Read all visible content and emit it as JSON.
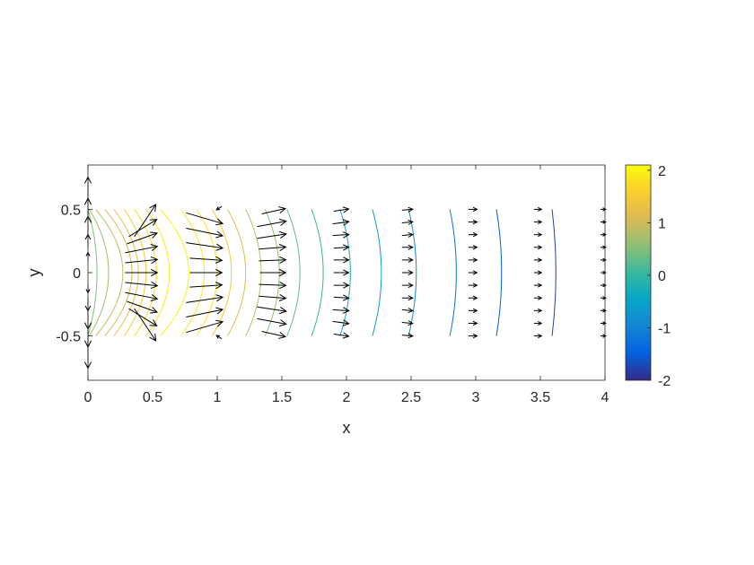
{
  "chart_data": {
    "type": "contour-quiver",
    "xlabel": "x",
    "ylabel": "y",
    "xlim": [
      0,
      4
    ],
    "ylim": [
      -0.85,
      0.85
    ],
    "xticks": [
      "0",
      "0.5",
      "1",
      "1.5",
      "2",
      "2.5",
      "3",
      "3.5",
      "4"
    ],
    "yticks": [
      "-0.5",
      "0",
      "0.5"
    ],
    "grid": false,
    "legend": "none",
    "colorbar": {
      "location": "right",
      "limits": [
        -2,
        2.1
      ],
      "ticks": [
        "-2",
        "-1",
        "0",
        "1",
        "2"
      ],
      "colormap": "parula"
    },
    "contour_levels": [
      -1.8,
      -1.5,
      -1.2,
      -0.9,
      -0.6,
      -0.3,
      0.0,
      0.3,
      0.6,
      0.9,
      1.2,
      1.5,
      1.8,
      2.05,
      1.9,
      1.7,
      1.5,
      1.3,
      1.1,
      0.9,
      0.7,
      0.5
    ],
    "contours": [
      {
        "level": 0.5,
        "x_center": 0.07,
        "x_edge": 0.0
      },
      {
        "level": 0.7,
        "x_center": 0.16,
        "x_edge": 0.01
      },
      {
        "level": 0.9,
        "x_center": 0.27,
        "x_edge": 0.06
      },
      {
        "level": 1.1,
        "x_center": 0.34,
        "x_edge": 0.13
      },
      {
        "level": 1.3,
        "x_center": 0.39,
        "x_edge": 0.2
      },
      {
        "level": 1.5,
        "x_center": 0.45,
        "x_edge": 0.28
      },
      {
        "level": 1.7,
        "x_center": 0.53,
        "x_edge": 0.36
      },
      {
        "level": 1.9,
        "x_center": 0.63,
        "x_edge": 0.45
      },
      {
        "level": 2.05,
        "x_center": 0.78,
        "x_edge": 0.56
      },
      {
        "level": 1.9,
        "x_center": 0.9,
        "x_edge": 0.72
      },
      {
        "level": 1.8,
        "x_center": 1.0,
        "x_edge": 0.84
      },
      {
        "level": 1.5,
        "x_center": 1.11,
        "x_edge": 0.96
      },
      {
        "level": 1.2,
        "x_center": 1.22,
        "x_edge": 1.08
      },
      {
        "level": 0.9,
        "x_center": 1.34,
        "x_edge": 1.22
      },
      {
        "level": 0.6,
        "x_center": 1.48,
        "x_edge": 1.37
      },
      {
        "level": 0.3,
        "x_center": 1.64,
        "x_edge": 1.54
      },
      {
        "level": 0.0,
        "x_center": 1.82,
        "x_edge": 1.73
      },
      {
        "level": -0.3,
        "x_center": 2.03,
        "x_edge": 1.95
      },
      {
        "level": -0.6,
        "x_center": 2.27,
        "x_edge": 2.2
      },
      {
        "level": -0.9,
        "x_center": 2.54,
        "x_edge": 2.48
      },
      {
        "level": -1.2,
        "x_center": 2.85,
        "x_edge": 2.8
      },
      {
        "level": -1.5,
        "x_center": 3.2,
        "x_edge": 3.16
      },
      {
        "level": -1.8,
        "x_center": 3.62,
        "x_edge": 3.59
      }
    ],
    "quiver": {
      "x": [
        0.0,
        0.5,
        1.0,
        1.5,
        2.0,
        2.5,
        3.0,
        3.5,
        4.0
      ],
      "y": [
        -0.5,
        -0.4,
        -0.3,
        -0.2,
        -0.1,
        0.0,
        0.1,
        0.2,
        0.3,
        0.4,
        0.5
      ],
      "columns": [
        {
          "x": 0.0,
          "u": [
            0,
            0,
            0,
            0,
            0,
            0,
            0,
            0,
            0,
            0,
            0
          ],
          "v": [
            -0.3,
            -0.22,
            -0.17,
            -0.12,
            -0.07,
            0.0,
            0.07,
            0.12,
            0.17,
            0.22,
            0.3
          ]
        },
        {
          "x": 0.5,
          "u": [
            0.2,
            0.26,
            0.28,
            0.3,
            0.3,
            0.3,
            0.3,
            0.3,
            0.28,
            0.26,
            0.2
          ],
          "v": [
            -0.3,
            -0.16,
            -0.1,
            -0.06,
            -0.03,
            0.0,
            0.03,
            0.06,
            0.1,
            0.16,
            0.3
          ]
        },
        {
          "x": 1.0,
          "u": [
            -0.05,
            0.34,
            0.34,
            0.34,
            0.3,
            0.3,
            0.3,
            0.34,
            0.34,
            0.34,
            -0.05
          ],
          "v": [
            0.03,
            0.1,
            0.07,
            0.05,
            0.02,
            0.0,
            -0.02,
            -0.05,
            -0.07,
            -0.1,
            -0.03
          ]
        },
        {
          "x": 1.5,
          "u": [
            0.22,
            0.27,
            0.27,
            0.25,
            0.25,
            0.24,
            0.25,
            0.25,
            0.27,
            0.27,
            0.22
          ],
          "v": [
            -0.05,
            -0.05,
            -0.04,
            -0.02,
            -0.01,
            0.0,
            0.01,
            0.02,
            0.04,
            0.05,
            0.05
          ]
        },
        {
          "x": 2.0,
          "u": [
            0.14,
            0.15,
            0.15,
            0.14,
            0.14,
            0.14,
            0.14,
            0.14,
            0.15,
            0.15,
            0.14
          ],
          "v": [
            -0.02,
            -0.02,
            -0.01,
            -0.01,
            0.0,
            0.0,
            0.0,
            0.01,
            0.01,
            0.02,
            0.02
          ]
        },
        {
          "x": 2.5,
          "u": [
            0.1,
            0.1,
            0.1,
            0.1,
            0.1,
            0.1,
            0.1,
            0.1,
            0.1,
            0.1,
            0.1
          ],
          "v": [
            -0.01,
            -0.01,
            -0.01,
            0.0,
            0.0,
            0.0,
            0.0,
            0.0,
            0.01,
            0.01,
            0.01
          ]
        },
        {
          "x": 3.0,
          "u": [
            0.08,
            0.08,
            0.08,
            0.08,
            0.08,
            0.08,
            0.08,
            0.08,
            0.08,
            0.08,
            0.08
          ],
          "v": [
            0,
            0,
            0,
            0,
            0,
            0,
            0,
            0,
            0,
            0,
            0
          ]
        },
        {
          "x": 3.5,
          "u": [
            0.07,
            0.07,
            0.07,
            0.07,
            0.07,
            0.07,
            0.07,
            0.07,
            0.07,
            0.07,
            0.07
          ],
          "v": [
            0,
            0,
            0,
            0,
            0,
            0,
            0,
            0,
            0,
            0,
            0
          ]
        },
        {
          "x": 4.0,
          "u": [
            0.05,
            0.05,
            0.05,
            0.05,
            0.05,
            0.05,
            0.05,
            0.05,
            0.05,
            0.05,
            0.05
          ],
          "v": [
            0,
            0,
            0,
            0,
            0,
            0,
            0,
            0,
            0,
            0,
            0
          ]
        }
      ]
    }
  }
}
